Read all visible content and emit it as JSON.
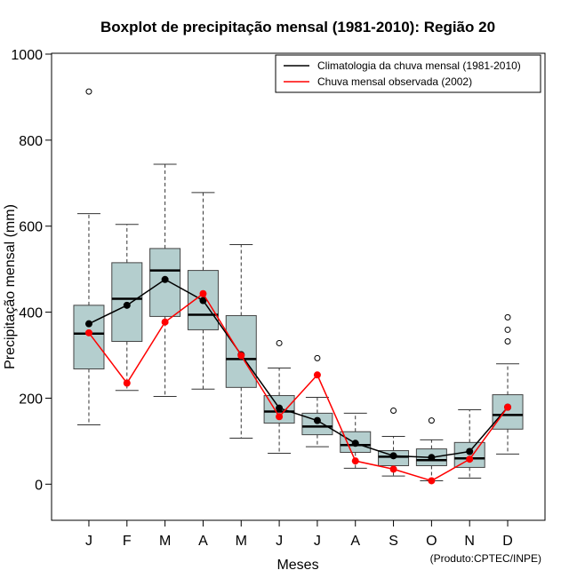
{
  "chart_data": {
    "type": "boxplot",
    "title": "Boxplot de precipitação mensal (1981-2010): Região 20",
    "xlabel": "Meses",
    "ylabel": "Precipitação mensal (mm)",
    "credit": "(Produto:CPTEC/INPE)",
    "ylim": [
      -84,
      1002
    ],
    "xlim": [
      0.02,
      12.98
    ],
    "yticks": [
      0,
      200,
      400,
      600,
      800,
      1000
    ],
    "categories": [
      "J",
      "F",
      "M",
      "A",
      "M",
      "J",
      "J",
      "A",
      "S",
      "O",
      "N",
      "D"
    ],
    "boxes": [
      {
        "low": 138,
        "q1": 268,
        "median": 350,
        "q3": 416,
        "high": 629,
        "outliers": [
          913
        ]
      },
      {
        "low": 218,
        "q1": 332,
        "median": 431,
        "q3": 515,
        "high": 604,
        "outliers": []
      },
      {
        "low": 204,
        "q1": 390,
        "median": 497,
        "q3": 548,
        "high": 744,
        "outliers": []
      },
      {
        "low": 221,
        "q1": 359,
        "median": 394,
        "q3": 497,
        "high": 678,
        "outliers": []
      },
      {
        "low": 107,
        "q1": 225,
        "median": 291,
        "q3": 392,
        "high": 557,
        "outliers": []
      },
      {
        "low": 72,
        "q1": 142,
        "median": 169,
        "q3": 206,
        "high": 270,
        "outliers": [
          328
        ]
      },
      {
        "low": 87,
        "q1": 115,
        "median": 134,
        "q3": 165,
        "high": 202,
        "outliers": [
          293
        ]
      },
      {
        "low": 37,
        "q1": 74,
        "median": 91,
        "q3": 122,
        "high": 165,
        "outliers": []
      },
      {
        "low": 19,
        "q1": 43,
        "median": 64,
        "q3": 78,
        "high": 111,
        "outliers": [
          171
        ]
      },
      {
        "low": 8,
        "q1": 43,
        "median": 56,
        "q3": 82,
        "high": 103,
        "outliers": [
          148
        ]
      },
      {
        "low": 14,
        "q1": 39,
        "median": 60,
        "q3": 97,
        "high": 173,
        "outliers": []
      },
      {
        "low": 70,
        "q1": 128,
        "median": 161,
        "q3": 208,
        "high": 280,
        "outliers": [
          332,
          359,
          388
        ]
      }
    ],
    "series": [
      {
        "name": "Climatologia da chuva mensal (1981-2010)",
        "color": "#000000",
        "values": [
          373,
          416,
          476,
          427,
          301,
          177,
          148,
          95,
          66,
          62,
          76,
          179
        ]
      },
      {
        "name": "Chuva mensal observada (2002)",
        "color": "#ff0000",
        "values": [
          352,
          235,
          377,
          443,
          299,
          157,
          254,
          54,
          35,
          8,
          58,
          179
        ]
      }
    ],
    "box_fill": "#b4cece",
    "legend_position": "top-right"
  }
}
